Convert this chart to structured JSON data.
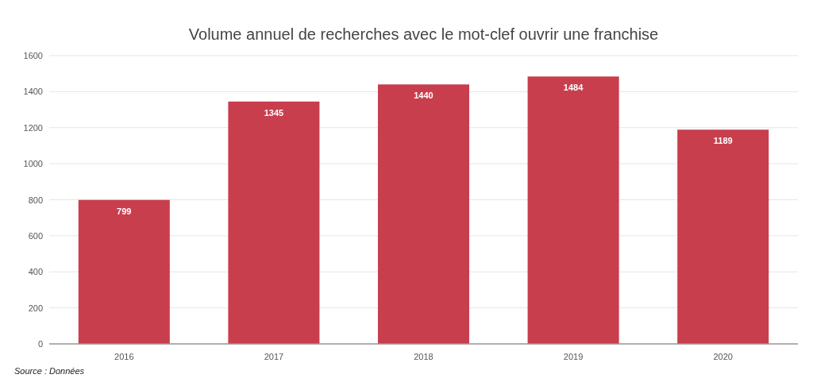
{
  "chart_data": {
    "type": "bar",
    "title": "Volume annuel de recherches avec le mot-clef ouvrir une franchise",
    "categories": [
      "2016",
      "2017",
      "2018",
      "2019",
      "2020"
    ],
    "values": [
      799,
      1345,
      1440,
      1484,
      1189
    ],
    "color": "#c83e4d",
    "ylim": [
      0,
      1600
    ],
    "yticks": [
      0,
      200,
      400,
      600,
      800,
      1000,
      1200,
      1400,
      1600
    ],
    "grid": "y",
    "data_labels": true,
    "annotations": [
      "Source : Données"
    ]
  }
}
